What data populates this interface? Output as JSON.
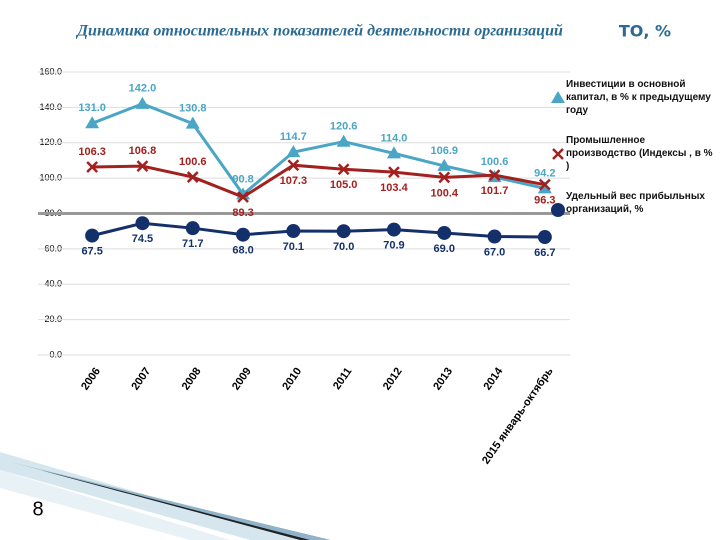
{
  "title": "Динамика относительных показателей деятельности организаций",
  "title_unit": "ТО, %",
  "page_number": "8",
  "chart_data": {
    "type": "line",
    "categories": [
      "2006",
      "2007",
      "2008",
      "2009",
      "2010",
      "2011",
      "2012",
      "2013",
      "2014",
      "2015 январь-октябрь"
    ],
    "series": [
      {
        "name": "Инвестиции в основной капитал, в % к предыдущему году",
        "color": "#4aa6c4",
        "marker": "triangle",
        "values": [
          131.0,
          142.0,
          130.8,
          90.8,
          114.7,
          120.6,
          114.0,
          106.9,
          100.6,
          94.2
        ],
        "value_labels": [
          "131.0",
          "142.0",
          "130.8",
          "90.8",
          "114.7",
          "120.6",
          "114.0",
          "106.9",
          "100.6",
          "94.2"
        ]
      },
      {
        "name": "Промышленное производство (Индексы , в % )",
        "color": "#a3201f",
        "marker": "x",
        "values": [
          106.3,
          106.8,
          100.6,
          89.3,
          107.3,
          105.0,
          103.4,
          100.4,
          101.7,
          96.3
        ],
        "value_labels": [
          "106.3",
          "106.8",
          "100.6",
          "89.3",
          "107.3",
          "105.0",
          "103.4",
          "100.4",
          "101.7",
          "96.3"
        ]
      },
      {
        "name": "Удельный вес прибыльных организаций, %",
        "color": "#14306a",
        "marker": "circle",
        "values": [
          67.5,
          74.5,
          71.7,
          68.0,
          70.1,
          70.0,
          70.9,
          69.0,
          67.0,
          66.7
        ],
        "value_labels": [
          "67.5",
          "74.5",
          "71.7",
          "68.0",
          "70.1",
          "70.0",
          "70.9",
          "69.0",
          "67.0",
          "66.7"
        ]
      }
    ],
    "ylim": [
      0,
      160
    ],
    "yticks": [
      {
        "value": 0,
        "label": "0.0"
      },
      {
        "value": 20,
        "label": "20.0"
      },
      {
        "value": 40,
        "label": "40.0"
      },
      {
        "value": 60,
        "label": "60.0"
      },
      {
        "value": 80,
        "label": "80.0"
      },
      {
        "value": 100,
        "label": "100.0"
      },
      {
        "value": 120,
        "label": "120.0"
      },
      {
        "value": 140,
        "label": "140.0"
      },
      {
        "value": 160,
        "label": "160.0"
      }
    ],
    "grid": true
  }
}
